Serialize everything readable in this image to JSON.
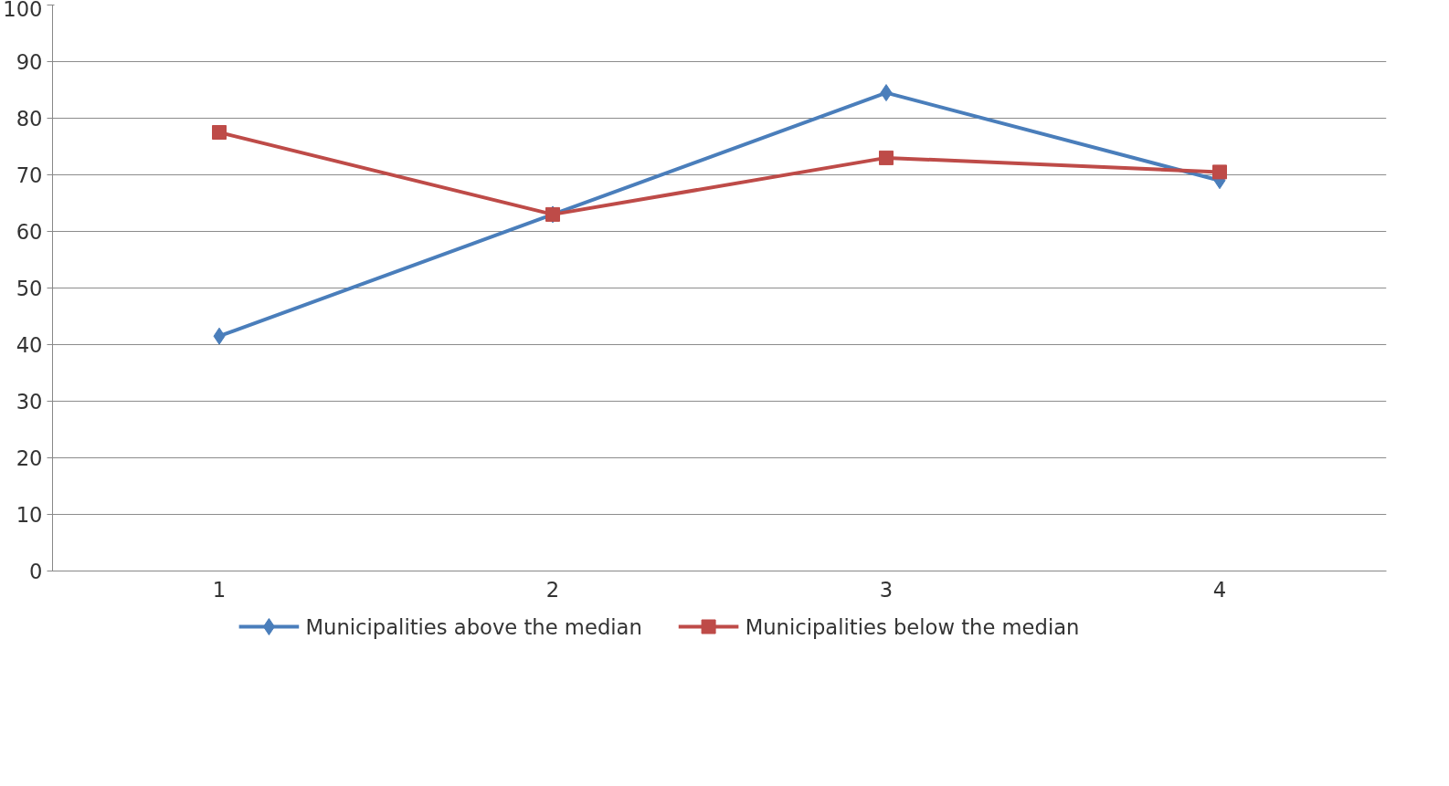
{
  "chart_data": {
    "type": "line",
    "categories": [
      "1",
      "2",
      "3",
      "4"
    ],
    "series": [
      {
        "name": "Municipalities above the median",
        "color": "#4a7ebb",
        "marker": "diamond",
        "values": [
          41.5,
          63,
          84.5,
          69
        ]
      },
      {
        "name": "Municipalities below the median",
        "color": "#be4b48",
        "marker": "square",
        "values": [
          77.5,
          63,
          73,
          70.5
        ]
      }
    ],
    "ylim": [
      0,
      100
    ],
    "yticks": [
      0,
      10,
      20,
      30,
      40,
      50,
      60,
      70,
      80,
      90,
      100
    ],
    "grid": "y",
    "legend": "bottom",
    "line_style": "solid"
  }
}
